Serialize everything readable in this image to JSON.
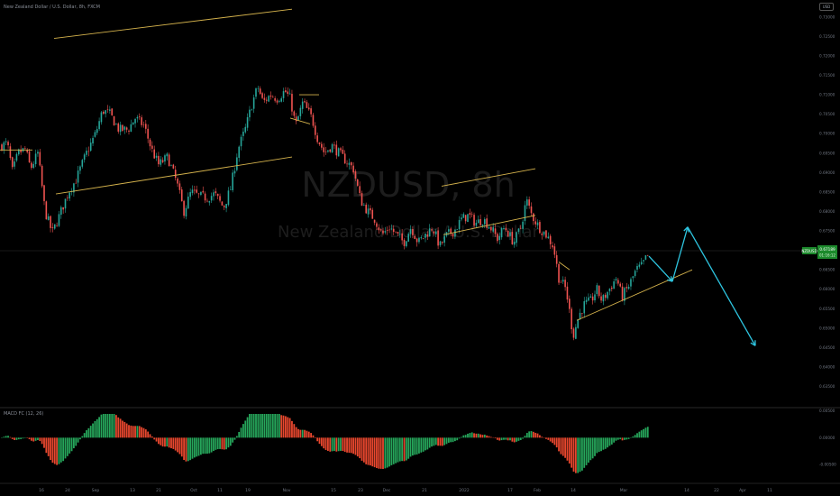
{
  "header": {
    "symbol_line": "New Zealand Dollar / U.S. Dollar, 8h, FXCM",
    "currency_button": "USD",
    "indicator_line": "MACD FC (12, 26)"
  },
  "watermark": {
    "ticker": "NZDUSD, 8h",
    "name": "New Zealand Dollar / U.S. Dollar"
  },
  "price_badge": {
    "symbol": "NZDUSD",
    "price": "0.67189",
    "countdown": "01:16:12",
    "value": 0.6719
  },
  "colors": {
    "background": "#000000",
    "up": "#26a69a",
    "down": "#ef5350",
    "trendline": "#d4b24c",
    "projection": "#2ec5e0",
    "hist_up": "#26a65b",
    "hist_down": "#e8472e",
    "axis_text": "#6f7580",
    "badge_green": "#1c8a2c"
  },
  "chart_data": [
    {
      "type": "candlestick",
      "title": "New Zealand Dollar / U.S. Dollar, 8h, FXCM",
      "ylim": [
        0.6305,
        0.7325
      ],
      "y_ticks": [
        "0.73000",
        "0.72500",
        "0.72000",
        "0.71500",
        "0.71000",
        "0.70500",
        "0.70000",
        "0.69500",
        "0.69000",
        "0.68500",
        "0.68000",
        "0.67500",
        "0.67000",
        "0.66500",
        "0.66000",
        "0.65500",
        "0.65000",
        "0.64500",
        "0.64000",
        "0.63500"
      ],
      "x_ticks": [
        "16",
        "24",
        "Sep",
        "13",
        "21",
        "Oct",
        "11",
        "19",
        "Nov",
        "15",
        "23",
        "Dec",
        "21",
        "2022",
        "17",
        "Feb",
        "14",
        "Mar",
        "14",
        "22",
        "Apr",
        "11"
      ],
      "closes_anchor": [
        [
          0,
          0.6968
        ],
        [
          8,
          0.6975
        ],
        [
          14,
          0.69
        ],
        [
          20,
          0.695
        ],
        [
          28,
          0.696
        ],
        [
          34,
          0.691
        ],
        [
          42,
          0.695
        ],
        [
          50,
          0.68
        ],
        [
          58,
          0.6745
        ],
        [
          66,
          0.679
        ],
        [
          76,
          0.685
        ],
        [
          84,
          0.688
        ],
        [
          96,
          0.695
        ],
        [
          106,
          0.7
        ],
        [
          114,
          0.706
        ],
        [
          122,
          0.705
        ],
        [
          132,
          0.701
        ],
        [
          142,
          0.701
        ],
        [
          150,
          0.704
        ],
        [
          160,
          0.702
        ],
        [
          168,
          0.696
        ],
        [
          176,
          0.692
        ],
        [
          186,
          0.694
        ],
        [
          196,
          0.6875
        ],
        [
          204,
          0.68
        ],
        [
          212,
          0.685
        ],
        [
          220,
          0.684
        ],
        [
          230,
          0.6835
        ],
        [
          238,
          0.6845
        ],
        [
          248,
          0.681
        ],
        [
          256,
          0.686
        ],
        [
          264,
          0.696
        ],
        [
          272,
          0.701
        ],
        [
          280,
          0.708
        ],
        [
          286,
          0.712
        ],
        [
          292,
          0.708
        ],
        [
          300,
          0.71
        ],
        [
          308,
          0.709
        ],
        [
          316,
          0.711
        ],
        [
          322,
          0.709
        ],
        [
          328,
          0.702
        ],
        [
          336,
          0.708
        ],
        [
          346,
          0.704
        ],
        [
          352,
          0.699
        ],
        [
          360,
          0.695
        ],
        [
          368,
          0.697
        ],
        [
          376,
          0.695
        ],
        [
          384,
          0.693
        ],
        [
          392,
          0.691
        ],
        [
          400,
          0.683
        ],
        [
          408,
          0.68
        ],
        [
          416,
          0.678
        ],
        [
          424,
          0.674
        ],
        [
          432,
          0.676
        ],
        [
          440,
          0.674
        ],
        [
          448,
          0.672
        ],
        [
          456,
          0.676
        ],
        [
          464,
          0.672
        ],
        [
          472,
          0.674
        ],
        [
          480,
          0.676
        ],
        [
          488,
          0.671
        ],
        [
          496,
          0.674
        ],
        [
          504,
          0.675
        ],
        [
          512,
          0.678
        ],
        [
          520,
          0.679
        ],
        [
          528,
          0.677
        ],
        [
          536,
          0.678
        ],
        [
          544,
          0.676
        ],
        [
          552,
          0.673
        ],
        [
          560,
          0.676
        ],
        [
          570,
          0.672
        ],
        [
          578,
          0.676
        ],
        [
          584,
          0.683
        ],
        [
          590,
          0.679
        ],
        [
          598,
          0.676
        ],
        [
          606,
          0.674
        ],
        [
          614,
          0.671
        ],
        [
          620,
          0.663
        ],
        [
          628,
          0.66
        ],
        [
          636,
          0.648
        ],
        [
          642,
          0.653
        ],
        [
          648,
          0.656
        ],
        [
          656,
          0.657
        ],
        [
          662,
          0.66
        ],
        [
          668,
          0.657
        ],
        [
          676,
          0.66
        ],
        [
          684,
          0.663
        ],
        [
          690,
          0.658
        ],
        [
          698,
          0.661
        ],
        [
          706,
          0.665
        ],
        [
          712,
          0.666
        ],
        [
          718,
          0.6685
        ]
      ]
    },
    {
      "type": "line",
      "title": "projection",
      "series": [
        {
          "values": [
            [
              720,
              0.6685
            ],
            [
              746,
              0.662
            ],
            [
              763,
              0.676
            ],
            [
              838,
              0.6455
            ]
          ]
        }
      ]
    },
    {
      "type": "bar",
      "title": "MACD FC (12, 26)",
      "ylim": [
        -0.0078,
        0.0044
      ],
      "y_ticks": [
        "0.00500",
        "0.00000",
        "-0.00500"
      ]
    }
  ],
  "trendlines": [
    {
      "name": "upper channel 1",
      "points": [
        [
          60,
          0.7245
        ],
        [
          324,
          0.732
        ]
      ]
    },
    {
      "name": "lower channel 1",
      "points": [
        [
          62,
          0.6845
        ],
        [
          324,
          0.694
        ]
      ]
    },
    {
      "name": "upper channel 2",
      "points": [
        [
          490,
          0.6865
        ],
        [
          594,
          0.691
        ]
      ]
    },
    {
      "name": "lower channel 2",
      "points": [
        [
          492,
          0.674
        ],
        [
          594,
          0.679
        ]
      ]
    },
    {
      "name": "support",
      "points": [
        [
          640,
          0.652
        ],
        [
          768,
          0.665
        ]
      ]
    },
    {
      "name": "short level 1",
      "points": [
        [
          0,
          0.6958
        ],
        [
          36,
          0.6958
        ]
      ]
    },
    {
      "name": "short level 2",
      "points": [
        [
          332,
          0.71
        ],
        [
          354,
          0.71
        ]
      ]
    },
    {
      "name": "short level 3",
      "points": [
        [
          322,
          0.704
        ],
        [
          344,
          0.7025
        ]
      ]
    },
    {
      "name": "short level 4",
      "points": [
        [
          620,
          0.667
        ],
        [
          632,
          0.665
        ]
      ]
    }
  ]
}
